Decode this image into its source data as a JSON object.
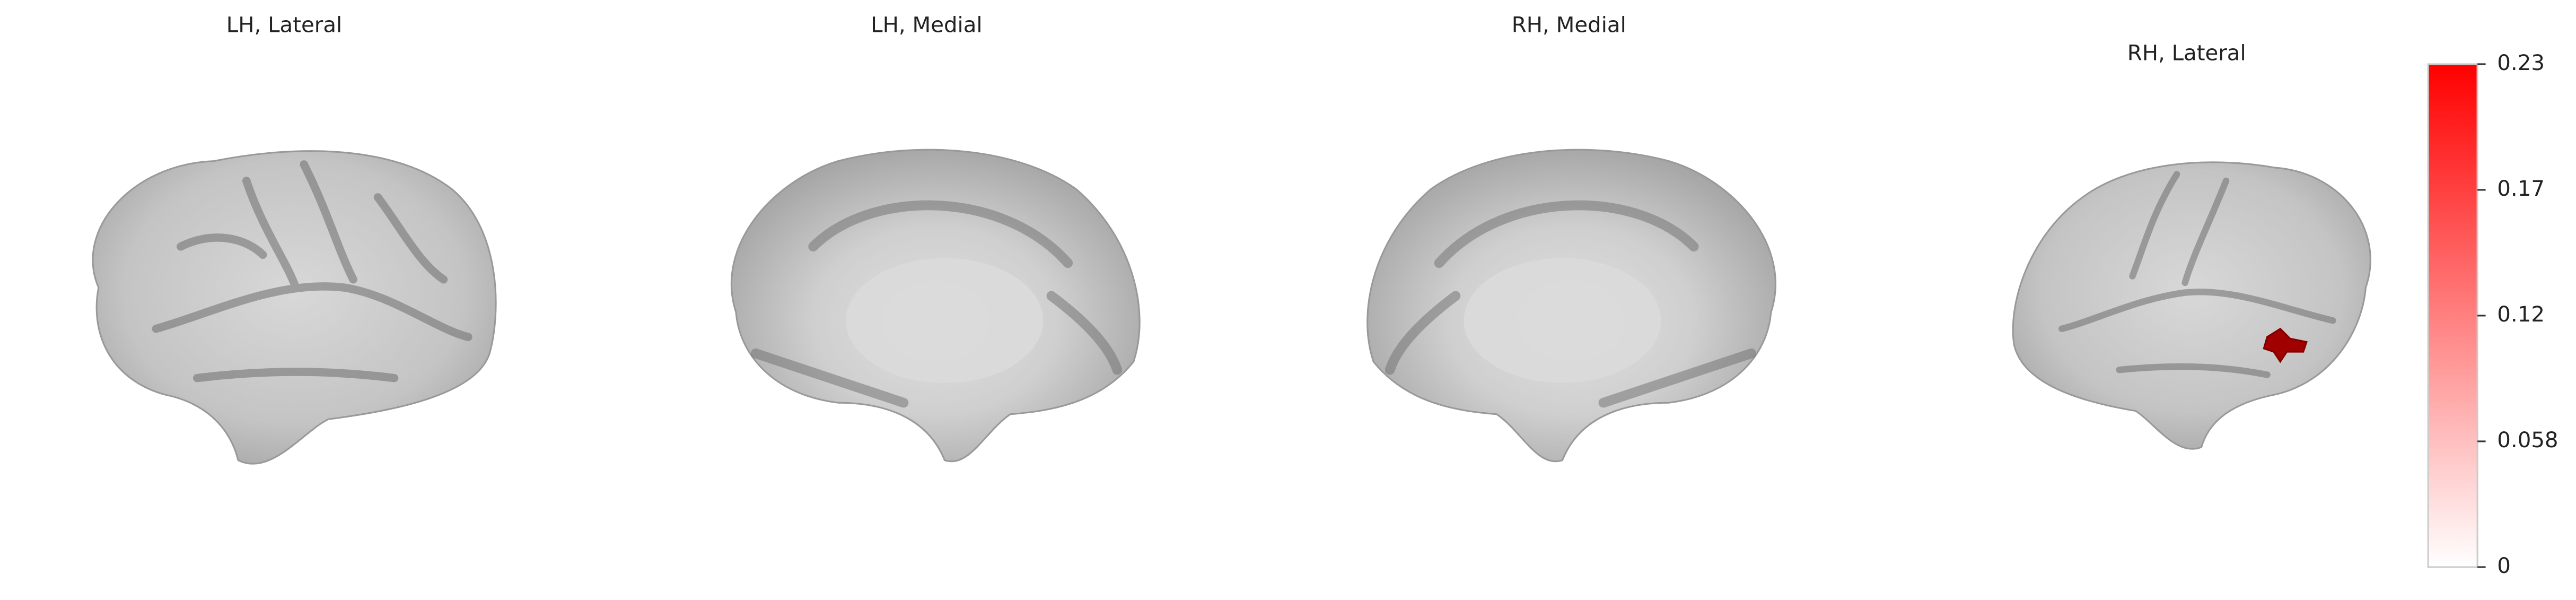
{
  "panels": [
    {
      "title": "LH, Lateral"
    },
    {
      "title": "LH, Medial"
    },
    {
      "title": "RH, Medial"
    },
    {
      "title": "RH, Lateral"
    }
  ],
  "colorbar": {
    "lim": [
      0,
      0.23
    ],
    "ticks": [
      0,
      {
        "value": 0.0575,
        "label": "0.058"
      },
      {
        "value": 0.115,
        "label": "0.12"
      },
      {
        "value": 0.1725,
        "label": "0.17"
      },
      0.23
    ]
  }
}
